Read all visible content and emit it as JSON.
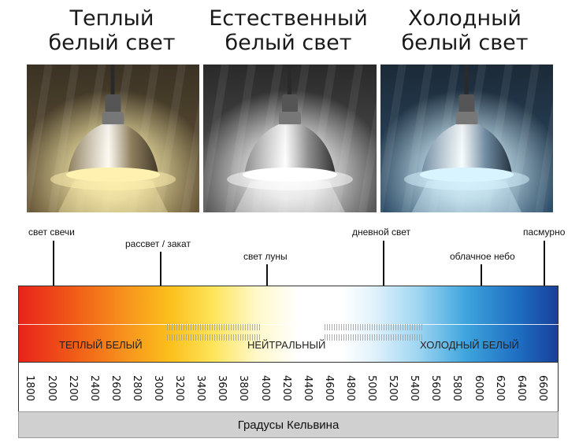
{
  "panels": [
    {
      "title_line1": "Теплый",
      "title_line2": "белый свет",
      "tone": "warm",
      "colors": {
        "bg_top": "#3a3224",
        "bg_bottom": "#6b5a3a",
        "glow": "#fff2b0",
        "shade": "#8a7a5a"
      }
    },
    {
      "title_line1": "Естественный",
      "title_line2": "белый свет",
      "tone": "neutral",
      "colors": {
        "bg_top": "#2a2a2a",
        "bg_bottom": "#5a5a5a",
        "glow": "#ffffff",
        "shade": "#8a8a8a"
      }
    },
    {
      "title_line1": "Холодный",
      "title_line2": "белый свет",
      "tone": "cool",
      "colors": {
        "bg_top": "#1c2a38",
        "bg_bottom": "#2f4f6a",
        "glow": "#d8f4ff",
        "shade": "#6f8aa0"
      }
    }
  ],
  "markers": [
    {
      "label": "свет свечи",
      "kelvin": 1900
    },
    {
      "label": "рассвет / закат",
      "kelvin": 3000
    },
    {
      "label": "свет луны",
      "kelvin": 4000
    },
    {
      "label": "дневной свет",
      "kelvin": 5100
    },
    {
      "label": "облачное небо",
      "kelvin": 6000
    },
    {
      "label": "пасмурно",
      "kelvin": 6600
    }
  ],
  "zones": {
    "warm": "ТЕПЛЫЙ БЕЛЫЙ",
    "neutral": "НЕЙТРАЛЬНЫЙ",
    "cool": "ХОЛОДНЫЙ БЕЛЫЙ"
  },
  "scale": {
    "ticks": [
      "1800",
      "2000",
      "2200",
      "2400",
      "2600",
      "2800",
      "3000",
      "3200",
      "3400",
      "3600",
      "3800",
      "4000",
      "4200",
      "4400",
      "4600",
      "4800",
      "5000",
      "5200",
      "5400",
      "5600",
      "5800",
      "6000",
      "6200",
      "6400",
      "6600"
    ],
    "unit_label": "Градусы Кельвина"
  },
  "gradient_colors": [
    "#e8231a",
    "#f7941d",
    "#fde45a",
    "#ffffff",
    "#9fd6f2",
    "#1d6cc0",
    "#1a3f98"
  ]
}
